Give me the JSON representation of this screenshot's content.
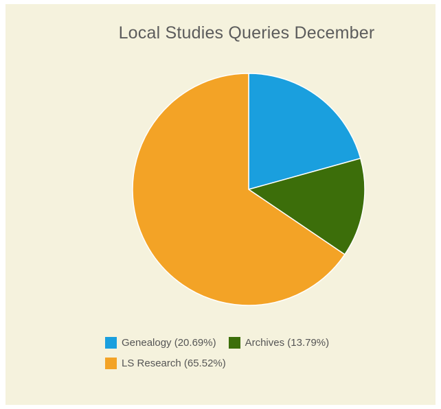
{
  "chart_data": {
    "type": "pie",
    "title": "Local Studies Queries December",
    "slices": [
      {
        "label": "Genealogy (20.69%)",
        "value": 20.69,
        "color": "#1a9fde"
      },
      {
        "label": "Archives (13.79%)",
        "value": 13.79,
        "color": "#3c6e0a"
      },
      {
        "label": "LS Research (65.52%)",
        "value": 65.52,
        "color": "#f3a326"
      }
    ],
    "legend_placement": "bottom"
  }
}
